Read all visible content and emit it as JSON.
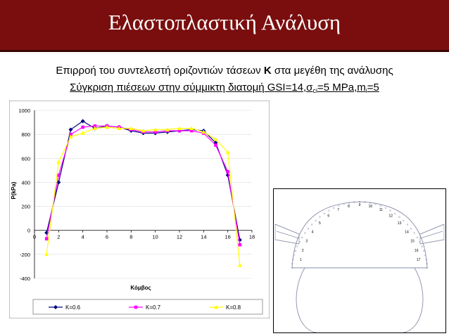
{
  "slide": {
    "title": "Ελαστοπλαστική Ανάλυση",
    "line1_prefix": "Επιρροή του συντελεστή οριζοντιών τάσεων ",
    "line1_bold": "K",
    "line1_suffix": " στα μεγέθη της ανάλυσης",
    "line2_underlined": "Σύγκριση πιέσεων στην σύμμικτη διατομή",
    "line2_param_gsi": " GSI=14,σ",
    "line2_param_sub_ci": "ci",
    "line2_param_mid": "=5 MPa,m",
    "line2_param_sub_i": "i",
    "line2_param_end": "=5"
  },
  "colors": {
    "title_background": "#7a0e0e",
    "k06": "#000080",
    "k07": "#ff00ff",
    "k08": "#ffff00"
  },
  "chart_data": {
    "type": "line",
    "title": "",
    "xlabel": "Κόμβος",
    "ylabel": "P(kPa)",
    "xlim": [
      0,
      18
    ],
    "ylim": [
      -400,
      1000
    ],
    "xticks": [
      "0",
      "2",
      "4",
      "6",
      "8",
      "10",
      "12",
      "14",
      "16",
      "18"
    ],
    "yticks": [
      "-400",
      "-200",
      "0",
      "200",
      "400",
      "600",
      "800",
      "1000"
    ],
    "grid": true,
    "legend_position": "bottom",
    "x": [
      1,
      2,
      3,
      4,
      5,
      6,
      7,
      8,
      9,
      10,
      11,
      12,
      13,
      14,
      15,
      16,
      17
    ],
    "series": [
      {
        "name": "K=0.6",
        "values": [
          -20,
          400,
          840,
          910,
          850,
          870,
          860,
          830,
          810,
          810,
          820,
          830,
          840,
          830,
          730,
          460,
          -80
        ]
      },
      {
        "name": "K=0.7",
        "values": [
          -70,
          460,
          800,
          860,
          870,
          870,
          860,
          840,
          820,
          820,
          830,
          830,
          830,
          810,
          710,
          490,
          -120
        ]
      },
      {
        "name": "K=0.8",
        "values": [
          -200,
          570,
          780,
          810,
          850,
          860,
          850,
          850,
          830,
          840,
          840,
          850,
          850,
          820,
          760,
          650,
          -290
        ]
      }
    ]
  },
  "diagram": {
    "node_labels": [
      "1",
      "2",
      "3",
      "4",
      "5",
      "6",
      "7",
      "8",
      "9",
      "10",
      "11",
      "12",
      "13",
      "14",
      "15",
      "16",
      "17"
    ]
  }
}
